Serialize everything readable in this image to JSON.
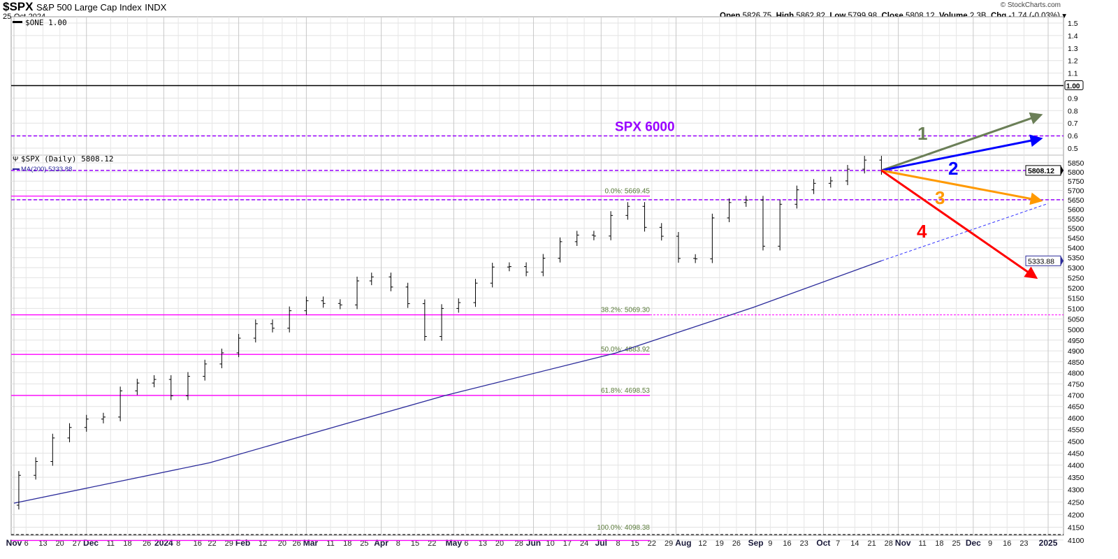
{
  "header": {
    "symbol": "$SPX",
    "name": "S&P 500 Large Cap Index",
    "exchange": "INDX",
    "date": "25-Oct-2024",
    "watermark": "© StockCharts.com",
    "open_label": "Open",
    "open": "5826.75",
    "high_label": "High",
    "high": "5862.82",
    "low_label": "Low",
    "low": "5799.98",
    "close_label": "Close",
    "close": "5808.12",
    "volume_label": "Volume",
    "volume": "2.3B",
    "chg_label": "Chg",
    "chg": "-1.74 (-0.03%)"
  },
  "legend": {
    "one": "$ONE 1.00",
    "price": "$SPX (Daily) 5808.12",
    "ma": "MA(200) 5333.88"
  },
  "chart_data": {
    "type": "ohlc-bar",
    "scale": "log",
    "upper_panel": {
      "series": "$ONE",
      "value": 1.0,
      "ylim": [
        0.45,
        1.55
      ],
      "ticks": [
        1.5,
        1.4,
        1.3,
        1.2,
        1.1,
        1.0,
        0.9,
        0.8,
        0.7,
        0.6,
        0.5
      ],
      "value_label": "1.00"
    },
    "ylim": [
      4090,
      5870
    ],
    "yticks": [
      5850,
      5800,
      5750,
      5700,
      5650,
      5600,
      5550,
      5500,
      5450,
      5400,
      5350,
      5300,
      5250,
      5200,
      5150,
      5100,
      5050,
      5000,
      4950,
      4900,
      4850,
      4800,
      4750,
      4700,
      4650,
      4600,
      4550,
      4500,
      4450,
      4400,
      4350,
      4300,
      4250,
      4200,
      4150,
      4100
    ],
    "xlim": [
      "2023-11-01",
      "2025-01-02"
    ],
    "xticks": [
      {
        "label": "Nov",
        "date": "2023-11-01",
        "major": true
      },
      {
        "label": "6",
        "date": "2023-11-06"
      },
      {
        "label": "13",
        "date": "2023-11-13"
      },
      {
        "label": "20",
        "date": "2023-11-20"
      },
      {
        "label": "27",
        "date": "2023-11-27"
      },
      {
        "label": "Dec",
        "date": "2023-12-01",
        "major": true
      },
      {
        "label": "11",
        "date": "2023-12-11"
      },
      {
        "label": "18",
        "date": "2023-12-18"
      },
      {
        "label": "26",
        "date": "2023-12-26"
      },
      {
        "label": "2024",
        "date": "2024-01-02",
        "major": true
      },
      {
        "label": "8",
        "date": "2024-01-08"
      },
      {
        "label": "16",
        "date": "2024-01-16"
      },
      {
        "label": "22",
        "date": "2024-01-22"
      },
      {
        "label": "29",
        "date": "2024-01-29"
      },
      {
        "label": "Feb",
        "date": "2024-02-02",
        "major": true
      },
      {
        "label": "12",
        "date": "2024-02-12"
      },
      {
        "label": "20",
        "date": "2024-02-20"
      },
      {
        "label": "26",
        "date": "2024-02-26"
      },
      {
        "label": "Mar",
        "date": "2024-03-01",
        "major": true
      },
      {
        "label": "11",
        "date": "2024-03-11"
      },
      {
        "label": "18",
        "date": "2024-03-18"
      },
      {
        "label": "25",
        "date": "2024-03-25"
      },
      {
        "label": "Apr",
        "date": "2024-04-01",
        "major": true
      },
      {
        "label": "8",
        "date": "2024-04-08"
      },
      {
        "label": "15",
        "date": "2024-04-15"
      },
      {
        "label": "22",
        "date": "2024-04-22"
      },
      {
        "label": "May",
        "date": "2024-05-01",
        "major": true
      },
      {
        "label": "6",
        "date": "2024-05-06"
      },
      {
        "label": "13",
        "date": "2024-05-13"
      },
      {
        "label": "20",
        "date": "2024-05-20"
      },
      {
        "label": "28",
        "date": "2024-05-28"
      },
      {
        "label": "Jun",
        "date": "2024-06-03",
        "major": true
      },
      {
        "label": "10",
        "date": "2024-06-10"
      },
      {
        "label": "17",
        "date": "2024-06-17"
      },
      {
        "label": "24",
        "date": "2024-06-24"
      },
      {
        "label": "Jul",
        "date": "2024-07-01",
        "major": true
      },
      {
        "label": "8",
        "date": "2024-07-08"
      },
      {
        "label": "15",
        "date": "2024-07-15"
      },
      {
        "label": "22",
        "date": "2024-07-22"
      },
      {
        "label": "29",
        "date": "2024-07-29"
      },
      {
        "label": "Aug",
        "date": "2024-08-01",
        "major": true
      },
      {
        "label": "12",
        "date": "2024-08-12"
      },
      {
        "label": "19",
        "date": "2024-08-19"
      },
      {
        "label": "26",
        "date": "2024-08-26"
      },
      {
        "label": "Sep",
        "date": "2024-09-03",
        "major": true
      },
      {
        "label": "9",
        "date": "2024-09-09"
      },
      {
        "label": "16",
        "date": "2024-09-16"
      },
      {
        "label": "23",
        "date": "2024-09-23"
      },
      {
        "label": "Oct",
        "date": "2024-10-01",
        "major": true
      },
      {
        "label": "7",
        "date": "2024-10-07"
      },
      {
        "label": "14",
        "date": "2024-10-14"
      },
      {
        "label": "21",
        "date": "2024-10-21"
      },
      {
        "label": "28",
        "date": "2024-10-28"
      },
      {
        "label": "Nov",
        "date": "2024-11-01",
        "major": true
      },
      {
        "label": "11",
        "date": "2024-11-11"
      },
      {
        "label": "18",
        "date": "2024-11-18"
      },
      {
        "label": "25",
        "date": "2024-11-25"
      },
      {
        "label": "Dec",
        "date": "2024-12-02",
        "major": true
      },
      {
        "label": "9",
        "date": "2024-12-09"
      },
      {
        "label": "16",
        "date": "2024-12-16"
      },
      {
        "label": "23",
        "date": "2024-12-23"
      },
      {
        "label": "2025",
        "date": "2025-01-02",
        "major": true
      }
    ],
    "price": {
      "name": "$SPX (Daily)",
      "start": {
        "date": "2023-11-01",
        "value": 4237
      },
      "weekly_close": [
        [
          "2023-11-03",
          4358
        ],
        [
          "2023-11-10",
          4415
        ],
        [
          "2023-11-17",
          4514
        ],
        [
          "2023-11-24",
          4559
        ],
        [
          "2023-12-01",
          4595
        ],
        [
          "2023-12-08",
          4604
        ],
        [
          "2023-12-15",
          4719
        ],
        [
          "2023-12-22",
          4754
        ],
        [
          "2023-12-29",
          4770
        ],
        [
          "2024-01-05",
          4697
        ],
        [
          "2024-01-12",
          4784
        ],
        [
          "2024-01-19",
          4840
        ],
        [
          "2024-01-26",
          4891
        ],
        [
          "2024-02-02",
          4959
        ],
        [
          "2024-02-09",
          5027
        ],
        [
          "2024-02-16",
          5006
        ],
        [
          "2024-02-23",
          5089
        ],
        [
          "2024-03-01",
          5137
        ],
        [
          "2024-03-08",
          5124
        ],
        [
          "2024-03-15",
          5117
        ],
        [
          "2024-03-22",
          5234
        ],
        [
          "2024-03-28",
          5254
        ],
        [
          "2024-04-05",
          5204
        ],
        [
          "2024-04-12",
          5123
        ],
        [
          "2024-04-19",
          4967
        ],
        [
          "2024-04-26",
          5100
        ],
        [
          "2024-05-03",
          5128
        ],
        [
          "2024-05-10",
          5223
        ],
        [
          "2024-05-17",
          5303
        ],
        [
          "2024-05-24",
          5305
        ],
        [
          "2024-05-31",
          5278
        ],
        [
          "2024-06-07",
          5347
        ],
        [
          "2024-06-14",
          5431
        ],
        [
          "2024-06-21",
          5465
        ],
        [
          "2024-06-28",
          5460
        ],
        [
          "2024-07-05",
          5567
        ],
        [
          "2024-07-12",
          5615
        ],
        [
          "2024-07-19",
          5505
        ],
        [
          "2024-07-26",
          5459
        ],
        [
          "2024-08-02",
          5346
        ],
        [
          "2024-08-09",
          5344
        ],
        [
          "2024-08-16",
          5554
        ],
        [
          "2024-08-23",
          5635
        ],
        [
          "2024-08-30",
          5648
        ],
        [
          "2024-09-06",
          5408
        ],
        [
          "2024-09-13",
          5626
        ],
        [
          "2024-09-20",
          5703
        ],
        [
          "2024-09-27",
          5738
        ],
        [
          "2024-10-04",
          5751
        ],
        [
          "2024-10-11",
          5815
        ],
        [
          "2024-10-18",
          5865
        ],
        [
          "2024-10-25",
          5808
        ]
      ],
      "last": 5808.12,
      "last_label": "5808.12"
    },
    "ma200": {
      "name": "MA(200)",
      "points": [
        [
          "2023-11-01",
          4245
        ],
        [
          "2024-01-21",
          4410
        ],
        [
          "2024-03-19",
          4580
        ],
        [
          "2024-04-28",
          4700
        ],
        [
          "2024-07-07",
          4890
        ],
        [
          "2024-09-02",
          5105
        ],
        [
          "2024-10-25",
          5334
        ]
      ],
      "projection": [
        [
          "2024-10-25",
          5334
        ],
        [
          "2025-01-02",
          5630
        ]
      ],
      "last_label": "5333.88"
    },
    "fibonacci": [
      {
        "label": "0.0%: 5669.45",
        "value": 5669.45
      },
      {
        "label": "38.2%: 5069.30",
        "value": 5069.3
      },
      {
        "label": "50.0%: 4883.92",
        "value": 4883.92
      },
      {
        "label": "61.8%: 4698.53",
        "value": 4698.53
      },
      {
        "label": "100.0%: 4098.38",
        "value": 4098.38
      }
    ],
    "fib_color": "#ff00ff",
    "horizontal_levels": [
      {
        "value": 6000,
        "label": "SPX 6000"
      },
      {
        "value": 5808.12
      },
      {
        "value": 5650
      }
    ],
    "level_color": "#9900ff",
    "scenarios": [
      {
        "label": "1",
        "color": "#6b7f57",
        "from": [
          "2024-10-25",
          5808
        ],
        "to": [
          "2024-12-30",
          6120
        ]
      },
      {
        "label": "2",
        "color": "#0000ff",
        "from": [
          "2024-10-25",
          5808
        ],
        "to": [
          "2024-12-30",
          5985
        ]
      },
      {
        "label": "3",
        "color": "#ff9900",
        "from": [
          "2024-10-25",
          5808
        ],
        "to": [
          "2024-12-30",
          5645
        ]
      },
      {
        "label": "4",
        "color": "#ff0000",
        "from": [
          "2024-10-25",
          5808
        ],
        "to": [
          "2024-12-28",
          5250
        ]
      }
    ]
  }
}
